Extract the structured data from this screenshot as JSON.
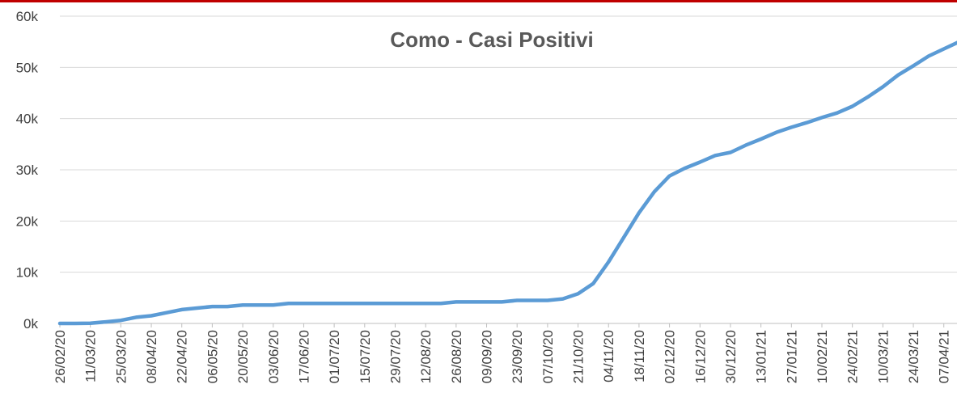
{
  "chart_data": {
    "type": "line",
    "title": "Como - Casi Positivi",
    "categories": [
      "26/02/20",
      null,
      "11/03/20",
      null,
      "25/03/20",
      null,
      "08/04/20",
      null,
      "22/04/20",
      null,
      "06/05/20",
      null,
      "20/05/20",
      null,
      "03/06/20",
      null,
      "17/06/20",
      null,
      "01/07/20",
      null,
      "15/07/20",
      null,
      "29/07/20",
      null,
      "12/08/20",
      null,
      "26/08/20",
      null,
      "09/09/20",
      null,
      "23/09/20",
      null,
      "07/10/20",
      null,
      "21/10/20",
      null,
      "04/11/20",
      null,
      "18/11/20",
      null,
      "02/12/20",
      null,
      "16/12/20",
      null,
      "30/12/20",
      null,
      "13/01/21",
      null,
      "27/01/21",
      null,
      "10/02/21",
      null,
      "24/02/21",
      null,
      "10/03/21",
      null,
      "24/03/21",
      null,
      "07/04/21",
      null
    ],
    "series": [
      {
        "name": "Casi Positivi",
        "color": "#5b9bd5",
        "values": [
          0,
          0,
          50,
          300,
          600,
          1200,
          1500,
          2100,
          2700,
          3000,
          3300,
          3300,
          3600,
          3600,
          3600,
          3900,
          3900,
          3900,
          3900,
          3900,
          3900,
          3900,
          3900,
          3900,
          3900,
          3900,
          4200,
          4200,
          4200,
          4200,
          4500,
          4500,
          4500,
          4800,
          5800,
          7800,
          12000,
          16800,
          21600,
          25700,
          28800,
          30300,
          31500,
          32800,
          33400,
          34800,
          36000,
          37300,
          38300,
          39200,
          40200,
          41100,
          42400,
          44200,
          46200,
          48500,
          50300,
          52200,
          53600,
          55000
        ]
      }
    ],
    "ylim": [
      0,
      60000
    ],
    "yticks": [
      {
        "value": 0,
        "label": "0k"
      },
      {
        "value": 10000,
        "label": "10k"
      },
      {
        "value": 20000,
        "label": "20k"
      },
      {
        "value": 30000,
        "label": "30k"
      },
      {
        "value": 40000,
        "label": "40k"
      },
      {
        "value": 50000,
        "label": "50k"
      },
      {
        "value": 60000,
        "label": "60k"
      }
    ],
    "grid": true
  }
}
